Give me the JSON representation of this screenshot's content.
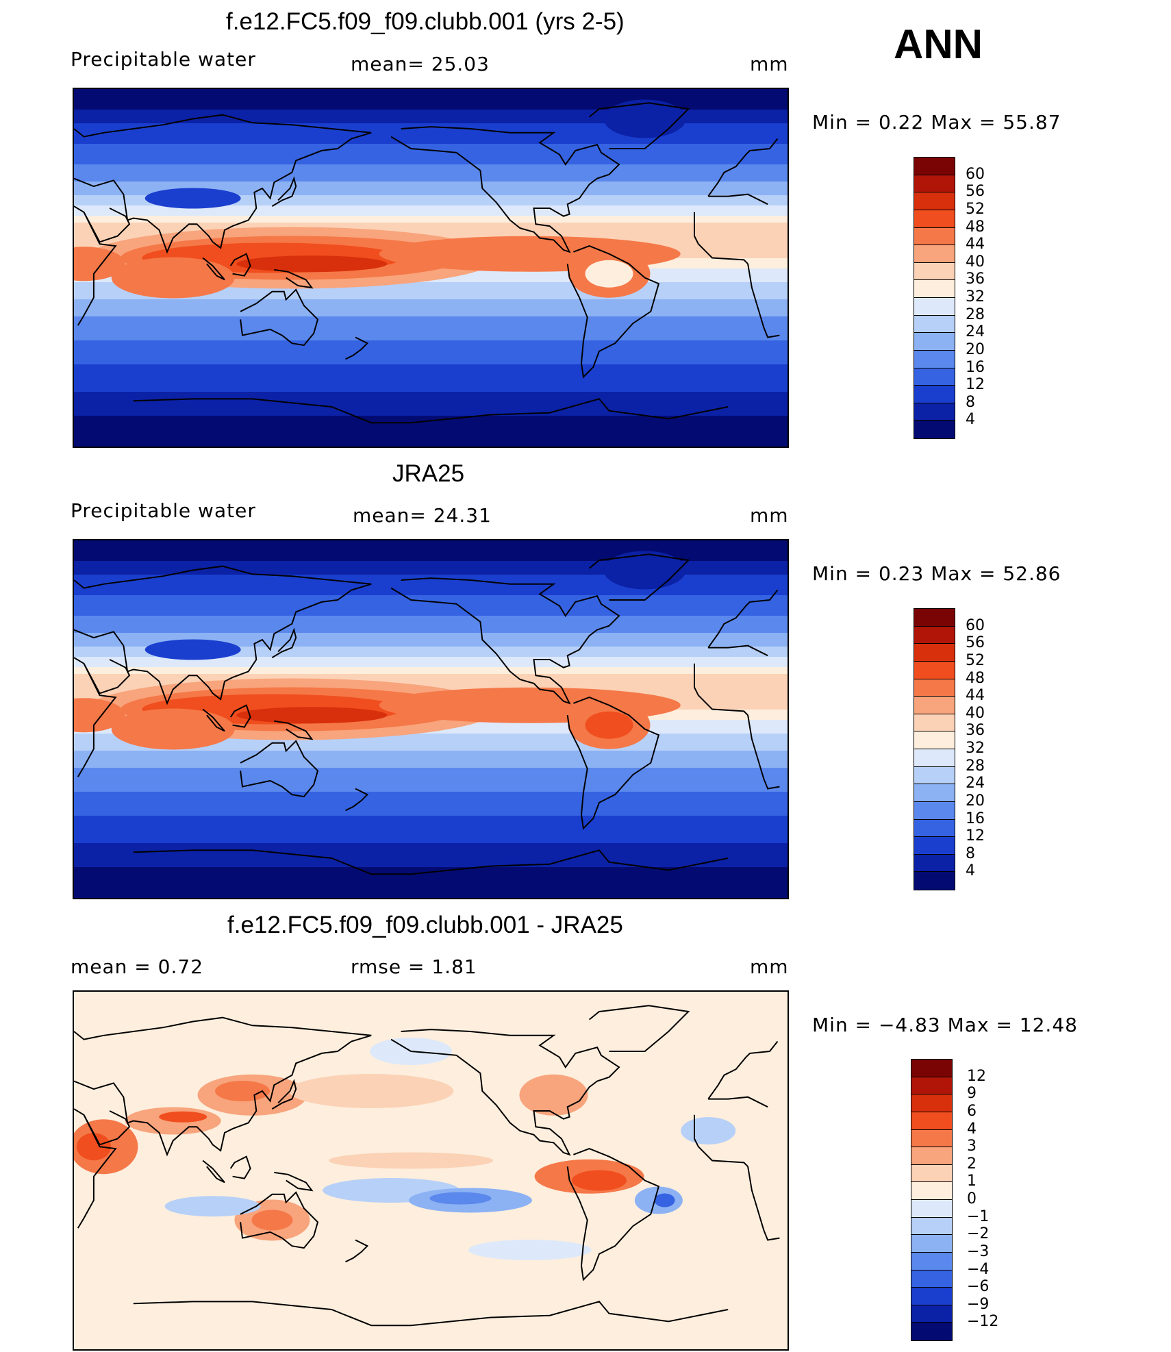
{
  "season": "ANN",
  "panels": [
    {
      "title": "f.e12.FC5.f09_f09.clubb.001 (yrs 2-5)",
      "left_label": "Precipitable  water",
      "center_label": "mean=   25.03",
      "units": "mm",
      "minmax": "Min  =     0.22  Max  =    55.87",
      "colorbar_labels": [
        "60",
        "56",
        "52",
        "48",
        "44",
        "40",
        "36",
        "32",
        "28",
        "24",
        "20",
        "16",
        "12",
        "8",
        "4"
      ],
      "colorbar_colors": [
        "#7a0404",
        "#b01508",
        "#d8300c",
        "#f04e1e",
        "#f57848",
        "#f8a47c",
        "#fbd2b6",
        "#fdeedd",
        "#dde9fa",
        "#b7d0f8",
        "#8cb2f4",
        "#5b88ec",
        "#3563e2",
        "#1a3fcf",
        "#0b21a6",
        "#030b72"
      ],
      "kind": "pw1"
    },
    {
      "title": "JRA25",
      "left_label": "Precipitable  water",
      "center_label": "mean=   24.31",
      "units": "mm",
      "minmax": "Min  =     0.23  Max  =    52.86",
      "colorbar_labels": [
        "60",
        "56",
        "52",
        "48",
        "44",
        "40",
        "36",
        "32",
        "28",
        "24",
        "20",
        "16",
        "12",
        "8",
        "4"
      ],
      "colorbar_colors": [
        "#7a0404",
        "#b01508",
        "#d8300c",
        "#f04e1e",
        "#f57848",
        "#f8a47c",
        "#fbd2b6",
        "#fdeedd",
        "#dde9fa",
        "#b7d0f8",
        "#8cb2f4",
        "#5b88ec",
        "#3563e2",
        "#1a3fcf",
        "#0b21a6",
        "#030b72"
      ],
      "kind": "pw2"
    },
    {
      "title": "f.e12.FC5.f09_f09.clubb.001 - JRA25",
      "left_label": "mean  =      0.72",
      "center_label": "rmse  =      1.81",
      "units": "mm",
      "minmax": "Min  =   −4.83  Max  =    12.48",
      "colorbar_labels": [
        "12",
        "9",
        "6",
        "4",
        "3",
        "2",
        "1",
        "0",
        "−1",
        "−2",
        "−3",
        "−4",
        "−6",
        "−9",
        "−12"
      ],
      "colorbar_colors": [
        "#7a0404",
        "#b01508",
        "#d8300c",
        "#f04e1e",
        "#f57848",
        "#f8a47c",
        "#fbd2b6",
        "#fdeedd",
        "#dde9fa",
        "#b7d0f8",
        "#8cb2f4",
        "#5b88ec",
        "#3563e2",
        "#1a3fcf",
        "#0b21a6",
        "#030b72"
      ],
      "kind": "diff"
    }
  ]
}
